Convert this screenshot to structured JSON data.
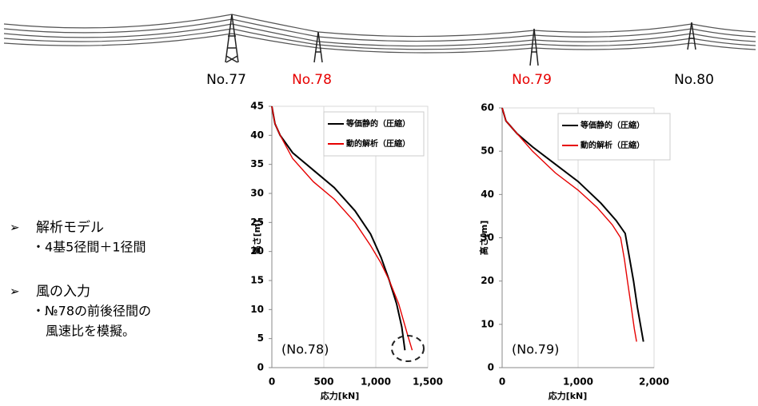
{
  "towers": [
    {
      "label": "No.77",
      "color": "#000000"
    },
    {
      "label": "No.78",
      "color": "#e60000"
    },
    {
      "label": "No.79",
      "color": "#e60000"
    },
    {
      "label": "No.80",
      "color": "#000000"
    }
  ],
  "bullets": [
    {
      "marker": "➢",
      "title": "解析モデル",
      "lines": [
        "・4基5径間＋1径間"
      ]
    },
    {
      "marker": "➢",
      "title": "風の入力",
      "lines": [
        "・№78の前後径間の",
        "風速比を模擬。"
      ]
    }
  ],
  "chart_data": [
    {
      "type": "line",
      "xlabel": "応力[kN]",
      "ylabel": "高さ[m]",
      "annotation": "(No.78)",
      "xlim": [
        0,
        1500
      ],
      "xticks": [
        0,
        500,
        {
          "value": 1000,
          "label": "1,000"
        },
        {
          "value": 1500,
          "label": "1,500"
        }
      ],
      "ylim": [
        0,
        45
      ],
      "yticks": [
        0,
        5,
        10,
        15,
        20,
        25,
        30,
        35,
        40,
        45
      ],
      "grid": "x",
      "legend": "top-right",
      "series": [
        {
          "name": "等価静的（圧縮）",
          "color": "#000000",
          "x": [
            0,
            30,
            80,
            200,
            400,
            600,
            800,
            950,
            1050,
            1130,
            1200,
            1250,
            1280
          ],
          "values": [
            45,
            42,
            40,
            37,
            34,
            31,
            27,
            23,
            19,
            15,
            11,
            7,
            3
          ]
        },
        {
          "name": "動的解析（圧縮）",
          "color": "#e60000",
          "x": [
            0,
            30,
            80,
            200,
            400,
            600,
            800,
            950,
            1050,
            1130,
            1220,
            1300,
            1350
          ],
          "values": [
            45,
            42,
            40,
            36,
            32,
            29,
            25,
            21,
            18,
            15,
            11,
            6,
            3
          ]
        }
      ]
    },
    {
      "type": "line",
      "xlabel": "応力[kN]",
      "ylabel": "高さ[m]",
      "annotation": "(No.79)",
      "xlim": [
        0,
        2000
      ],
      "xticks": [
        0,
        {
          "value": 1000,
          "label": "1,000"
        },
        {
          "value": 2000,
          "label": "2,000"
        }
      ],
      "ylim": [
        0,
        60
      ],
      "yticks": [
        0,
        10,
        20,
        30,
        40,
        50,
        60
      ],
      "grid": "x",
      "legend": "top-right",
      "series": [
        {
          "name": "等価静的（圧縮）",
          "color": "#000000",
          "x": [
            0,
            50,
            200,
            400,
            700,
            1000,
            1300,
            1500,
            1620,
            1680,
            1730,
            1780,
            1830,
            1860
          ],
          "values": [
            60,
            57,
            54,
            51,
            47,
            43,
            38,
            34,
            31,
            25,
            20,
            14,
            9,
            6
          ]
        },
        {
          "name": "動的解析（圧縮）",
          "color": "#e60000",
          "x": [
            0,
            50,
            200,
            400,
            700,
            1000,
            1250,
            1450,
            1560,
            1610,
            1650,
            1700,
            1740,
            1770
          ],
          "values": [
            60,
            57,
            54,
            50,
            45,
            41,
            37,
            33,
            30,
            25,
            20,
            14,
            9,
            6
          ]
        }
      ]
    }
  ]
}
